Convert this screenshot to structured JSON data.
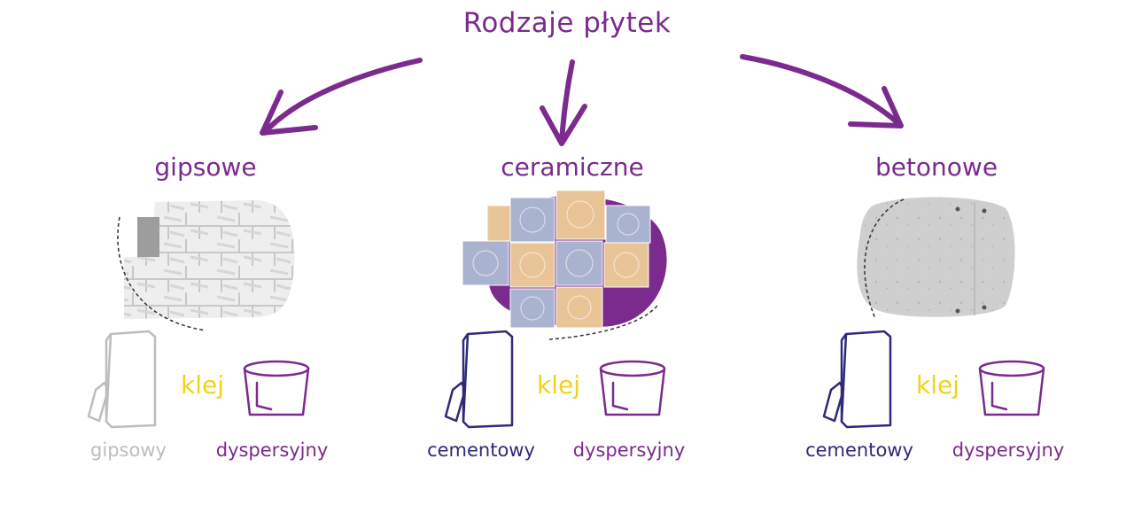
{
  "title": "Rodzaje płytek",
  "categories": [
    {
      "name": "gipsowe",
      "adhesive_word": "klej",
      "adhesive_types": [
        "gipsowy",
        "dyspersyjny"
      ]
    },
    {
      "name": "ceramiczne",
      "adhesive_word": "klej",
      "adhesive_types": [
        "cementowy",
        "dyspersyjny"
      ]
    },
    {
      "name": "betonowe",
      "adhesive_word": "klej",
      "adhesive_types": [
        "cementowy",
        "dyspersyjny"
      ]
    }
  ],
  "colors": {
    "purple": "#7b2a8e",
    "navy": "#2f2a7a",
    "gray": "#bdbdbd",
    "yellow": "#f2d21a",
    "ceramic_blue": "#a9b3cf",
    "ceramic_orange": "#e9c497",
    "concrete": "#c9c9c9"
  },
  "icons": [
    "arrow-icon",
    "adhesive-bag-icon",
    "bucket-icon"
  ]
}
